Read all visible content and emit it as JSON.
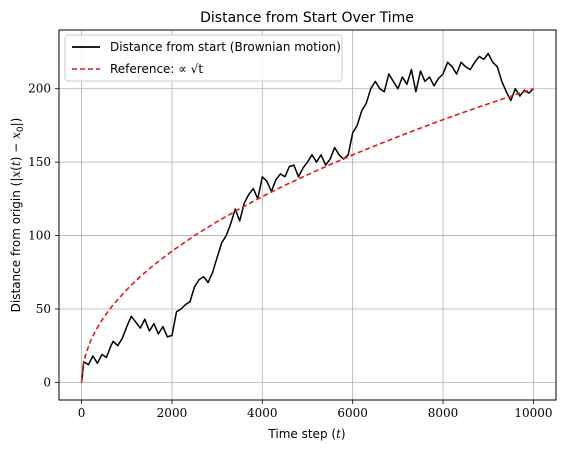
{
  "chart_data": {
    "type": "line",
    "title": "Distance from Start Over Time",
    "xlabel": "Time step (t)",
    "ylabel": "Distance from origin (|x(t) − x₀|)",
    "xlim": [
      -500,
      10500
    ],
    "ylim": [
      -12,
      240
    ],
    "xticks": [
      0,
      2000,
      4000,
      6000,
      8000,
      10000
    ],
    "yticks": [
      0,
      50,
      100,
      150,
      200
    ],
    "grid": true,
    "legend_position": "top-left",
    "series": [
      {
        "name": "Distance from start (Brownian motion)",
        "color": "#000000",
        "style": "solid",
        "x": [
          0,
          50,
          150,
          250,
          350,
          450,
          550,
          650,
          700,
          800,
          900,
          1000,
          1100,
          1200,
          1300,
          1400,
          1500,
          1600,
          1700,
          1800,
          1900,
          2000,
          2100,
          2200,
          2300,
          2400,
          2500,
          2600,
          2700,
          2800,
          2900,
          3000,
          3100,
          3200,
          3300,
          3400,
          3500,
          3600,
          3700,
          3800,
          3900,
          4000,
          4100,
          4200,
          4300,
          4400,
          4500,
          4600,
          4700,
          4800,
          4900,
          5000,
          5100,
          5200,
          5300,
          5400,
          5500,
          5600,
          5700,
          5800,
          5900,
          6000,
          6100,
          6200,
          6300,
          6400,
          6500,
          6600,
          6700,
          6800,
          6900,
          7000,
          7100,
          7200,
          7300,
          7400,
          7500,
          7600,
          7700,
          7800,
          7900,
          8000,
          8100,
          8200,
          8300,
          8400,
          8500,
          8600,
          8700,
          8800,
          8900,
          9000,
          9100,
          9200,
          9300,
          9400,
          9500,
          9600,
          9700,
          9800,
          9900,
          10000
        ],
        "y": [
          0,
          14,
          12,
          18,
          13,
          19,
          17,
          25,
          28,
          25,
          30,
          38,
          45,
          41,
          37,
          43,
          35,
          40,
          33,
          38,
          31,
          32,
          48,
          50,
          53,
          55,
          65,
          70,
          72,
          68,
          75,
          85,
          95,
          100,
          108,
          118,
          110,
          122,
          128,
          132,
          125,
          140,
          137,
          130,
          138,
          142,
          140,
          147,
          148,
          140,
          146,
          150,
          155,
          150,
          155,
          148,
          152,
          160,
          155,
          152,
          155,
          170,
          175,
          185,
          190,
          200,
          205,
          200,
          198,
          210,
          205,
          200,
          208,
          203,
          213,
          198,
          212,
          205,
          208,
          202,
          207,
          210,
          218,
          215,
          210,
          218,
          215,
          213,
          218,
          222,
          220,
          224,
          218,
          215,
          205,
          198,
          192,
          200,
          195,
          199,
          197,
          200
        ]
      },
      {
        "name": "Reference: ∝ √t",
        "color": "#e41a1c",
        "style": "dashed",
        "x": [
          0,
          25,
          50,
          100,
          200,
          300,
          400,
          500,
          700,
          1000,
          1300,
          1600,
          2000,
          2500,
          3000,
          3500,
          4000,
          4500,
          5000,
          5500,
          6000,
          6500,
          7000,
          7500,
          8000,
          8500,
          9000,
          9500,
          10000
        ],
        "y": [
          0,
          10,
          14.1,
          20,
          28.3,
          34.6,
          40,
          44.7,
          52.9,
          63.2,
          72.1,
          80,
          89.4,
          100,
          109.5,
          118.3,
          126.5,
          134.2,
          141.4,
          148.3,
          154.9,
          161.2,
          167.3,
          173.2,
          178.9,
          184.4,
          189.7,
          194.9,
          200
        ]
      }
    ]
  }
}
